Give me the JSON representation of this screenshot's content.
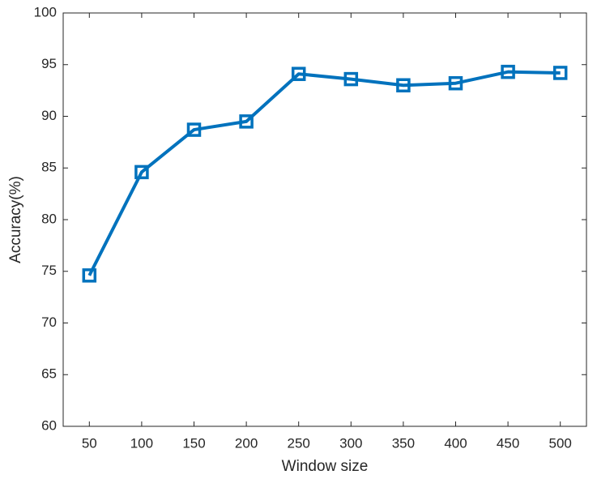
{
  "chart_data": {
    "type": "line",
    "xlabel": "Window size",
    "ylabel": "Accuracy(%)",
    "x": [
      50,
      100,
      150,
      200,
      250,
      300,
      350,
      400,
      450,
      500
    ],
    "series": [
      {
        "color": "#0072bd",
        "values": [
          74.6,
          84.6,
          88.7,
          89.5,
          94.1,
          93.6,
          93.0,
          93.2,
          94.3,
          94.2
        ]
      }
    ],
    "xlim": [
      25,
      525
    ],
    "xticks": [
      50,
      100,
      150,
      200,
      250,
      300,
      350,
      400,
      450,
      500
    ],
    "ylim": [
      60,
      100
    ],
    "yticks": [
      60,
      65,
      70,
      75,
      80,
      85,
      90,
      95,
      100
    ],
    "grid": false,
    "marker": "square"
  }
}
